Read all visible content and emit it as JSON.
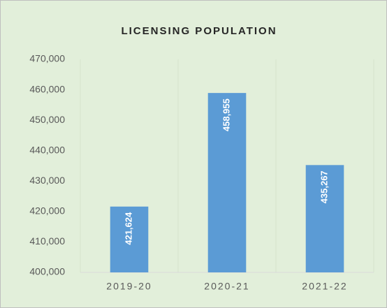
{
  "chart_data": {
    "type": "bar",
    "title": "LICENSING POPULATION",
    "categories": [
      "2019-20",
      "2020-21",
      "2021-22"
    ],
    "values": [
      421624,
      458955,
      435267
    ],
    "value_labels": [
      "421,624",
      "458,955",
      "435,267"
    ],
    "color": "#5b9bd5",
    "ylim": [
      400000,
      470000
    ],
    "yticks": [
      {
        "value": 400000,
        "label": "400,000"
      },
      {
        "value": 410000,
        "label": "410,000"
      },
      {
        "value": 420000,
        "label": "420,000"
      },
      {
        "value": 430000,
        "label": "430,000"
      },
      {
        "value": 440000,
        "label": "440,000"
      },
      {
        "value": 450000,
        "label": "450,000"
      },
      {
        "value": 460000,
        "label": "460,000"
      },
      {
        "value": 470000,
        "label": "470,000"
      }
    ],
    "grid": false
  }
}
